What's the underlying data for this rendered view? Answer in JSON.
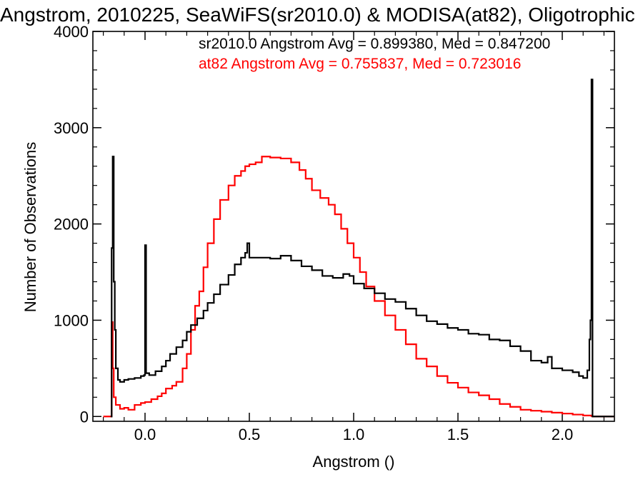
{
  "chart_data": {
    "type": "line",
    "title": "Angstrom, 2010225, SeaWiFS(sr2010.0) & MODISA(at82), Oligotrophic",
    "xlabel": "Angstrom ()",
    "ylabel": "Number of Observations",
    "xlim": [
      -0.25,
      2.25
    ],
    "ylim": [
      -50,
      4000
    ],
    "x_ticks": [
      0.0,
      0.5,
      1.0,
      1.5,
      2.0
    ],
    "x_tick_labels": [
      "0.0",
      "0.5",
      "1.0",
      "1.5",
      "2.0"
    ],
    "y_ticks": [
      0,
      1000,
      2000,
      3000,
      4000
    ],
    "y_tick_labels": [
      "0",
      "1000",
      "2000",
      "3000",
      "4000"
    ],
    "grid": false,
    "legend_position": "top-right",
    "annotations": [
      {
        "text": "sr2010.0 Angstrom Avg = 0.899380, Med = 0.847200",
        "color": "#000000"
      },
      {
        "text": "at82 Angstrom Avg = 0.755837, Med = 0.723016",
        "color": "#ff0000"
      }
    ],
    "series": [
      {
        "name": "sr2010.0",
        "color": "#000000",
        "style": "step",
        "points": [
          [
            -0.165,
            0
          ],
          [
            -0.16,
            1750
          ],
          [
            -0.155,
            2700
          ],
          [
            -0.15,
            1400
          ],
          [
            -0.145,
            900
          ],
          [
            -0.14,
            500
          ],
          [
            -0.13,
            380
          ],
          [
            -0.12,
            360
          ],
          [
            -0.1,
            380
          ],
          [
            -0.08,
            390
          ],
          [
            -0.05,
            400
          ],
          [
            -0.02,
            420
          ],
          [
            -0.005,
            430
          ],
          [
            0.0,
            1780
          ],
          [
            0.005,
            450
          ],
          [
            0.02,
            430
          ],
          [
            0.05,
            470
          ],
          [
            0.08,
            520
          ],
          [
            0.1,
            580
          ],
          [
            0.12,
            650
          ],
          [
            0.15,
            720
          ],
          [
            0.18,
            790
          ],
          [
            0.2,
            880
          ],
          [
            0.22,
            950
          ],
          [
            0.25,
            1020
          ],
          [
            0.28,
            1100
          ],
          [
            0.3,
            1180
          ],
          [
            0.33,
            1270
          ],
          [
            0.36,
            1370
          ],
          [
            0.4,
            1470
          ],
          [
            0.43,
            1580
          ],
          [
            0.46,
            1650
          ],
          [
            0.48,
            1700
          ],
          [
            0.49,
            1800
          ],
          [
            0.5,
            1650
          ],
          [
            0.55,
            1650
          ],
          [
            0.6,
            1640
          ],
          [
            0.65,
            1670
          ],
          [
            0.7,
            1620
          ],
          [
            0.75,
            1560
          ],
          [
            0.8,
            1520
          ],
          [
            0.85,
            1460
          ],
          [
            0.9,
            1440
          ],
          [
            0.95,
            1480
          ],
          [
            0.98,
            1460
          ],
          [
            1.0,
            1380
          ],
          [
            1.05,
            1330
          ],
          [
            1.1,
            1280
          ],
          [
            1.15,
            1220
          ],
          [
            1.2,
            1190
          ],
          [
            1.25,
            1120
          ],
          [
            1.3,
            1050
          ],
          [
            1.35,
            990
          ],
          [
            1.4,
            960
          ],
          [
            1.45,
            920
          ],
          [
            1.5,
            900
          ],
          [
            1.55,
            860
          ],
          [
            1.6,
            850
          ],
          [
            1.65,
            800
          ],
          [
            1.7,
            790
          ],
          [
            1.75,
            730
          ],
          [
            1.8,
            680
          ],
          [
            1.85,
            580
          ],
          [
            1.9,
            560
          ],
          [
            1.93,
            620
          ],
          [
            1.95,
            500
          ],
          [
            2.0,
            480
          ],
          [
            2.05,
            460
          ],
          [
            2.08,
            420
          ],
          [
            2.1,
            400
          ],
          [
            2.12,
            480
          ],
          [
            2.13,
            800
          ],
          [
            2.135,
            1000
          ],
          [
            2.14,
            3500
          ],
          [
            2.145,
            0
          ],
          [
            2.25,
            0
          ]
        ]
      },
      {
        "name": "at82",
        "color": "#ff0000",
        "style": "step",
        "points": [
          [
            -0.2,
            0
          ],
          [
            -0.165,
            0
          ],
          [
            -0.16,
            980
          ],
          [
            -0.155,
            500
          ],
          [
            -0.15,
            200
          ],
          [
            -0.14,
            120
          ],
          [
            -0.12,
            80
          ],
          [
            -0.1,
            90
          ],
          [
            -0.08,
            70
          ],
          [
            -0.05,
            120
          ],
          [
            -0.02,
            140
          ],
          [
            0.0,
            150
          ],
          [
            0.03,
            180
          ],
          [
            0.06,
            210
          ],
          [
            0.08,
            240
          ],
          [
            0.1,
            290
          ],
          [
            0.13,
            320
          ],
          [
            0.15,
            360
          ],
          [
            0.18,
            500
          ],
          [
            0.2,
            650
          ],
          [
            0.22,
            900
          ],
          [
            0.24,
            1150
          ],
          [
            0.26,
            1300
          ],
          [
            0.28,
            1550
          ],
          [
            0.3,
            1800
          ],
          [
            0.33,
            2050
          ],
          [
            0.36,
            2250
          ],
          [
            0.4,
            2400
          ],
          [
            0.43,
            2500
          ],
          [
            0.46,
            2550
          ],
          [
            0.48,
            2600
          ],
          [
            0.5,
            2620
          ],
          [
            0.53,
            2640
          ],
          [
            0.56,
            2700
          ],
          [
            0.6,
            2690
          ],
          [
            0.65,
            2680
          ],
          [
            0.7,
            2640
          ],
          [
            0.74,
            2560
          ],
          [
            0.77,
            2470
          ],
          [
            0.8,
            2350
          ],
          [
            0.84,
            2270
          ],
          [
            0.88,
            2200
          ],
          [
            0.91,
            2100
          ],
          [
            0.94,
            1950
          ],
          [
            0.97,
            1800
          ],
          [
            1.0,
            1650
          ],
          [
            1.03,
            1500
          ],
          [
            1.06,
            1350
          ],
          [
            1.1,
            1200
          ],
          [
            1.15,
            1050
          ],
          [
            1.2,
            900
          ],
          [
            1.25,
            750
          ],
          [
            1.3,
            600
          ],
          [
            1.35,
            520
          ],
          [
            1.4,
            420
          ],
          [
            1.45,
            350
          ],
          [
            1.5,
            300
          ],
          [
            1.55,
            250
          ],
          [
            1.6,
            220
          ],
          [
            1.65,
            180
          ],
          [
            1.7,
            130
          ],
          [
            1.75,
            100
          ],
          [
            1.8,
            70
          ],
          [
            1.85,
            60
          ],
          [
            1.9,
            50
          ],
          [
            1.95,
            40
          ],
          [
            2.0,
            30
          ],
          [
            2.05,
            20
          ],
          [
            2.1,
            10
          ],
          [
            2.14,
            5
          ],
          [
            2.145,
            0
          ],
          [
            2.25,
            0
          ]
        ]
      }
    ]
  }
}
